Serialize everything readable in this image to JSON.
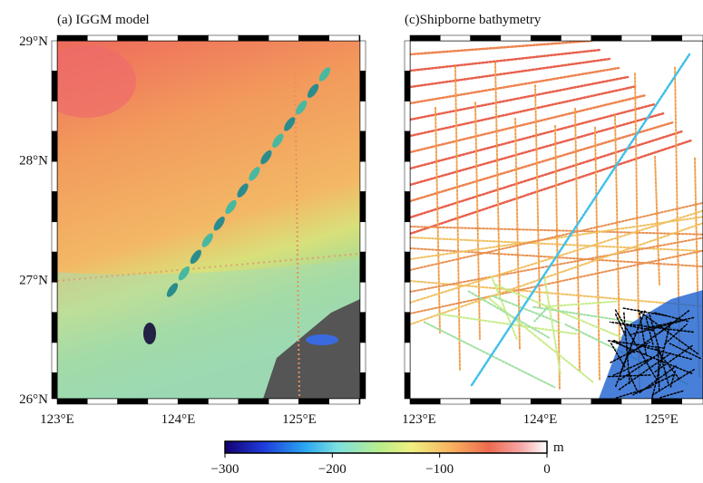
{
  "panels": [
    {
      "title": "(a) IGGM model",
      "lat_labels": [
        "29°N",
        "28°N",
        "27°N",
        "26°N"
      ],
      "lon_labels": [
        "123°E",
        "124°E",
        "125°E"
      ]
    },
    {
      "title": "(c)Shipborne bathymetry",
      "lon_labels": [
        "123°E",
        "124°E",
        "125°E"
      ]
    }
  ],
  "colorbar": {
    "unit": "m",
    "tick_labels": [
      "−300",
      "−200",
      "−100",
      "0"
    ]
  }
}
